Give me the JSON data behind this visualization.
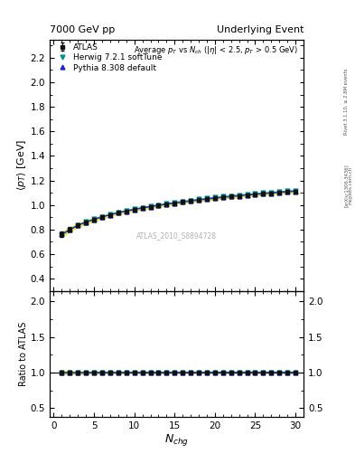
{
  "title_left": "7000 GeV pp",
  "title_right": "Underlying Event",
  "watermark": "ATLAS_2010_S8894728",
  "right_label": "Rivet 3.1.10, ≥ 2.8M events",
  "arxiv_label": "[arXiv:1306.3436]",
  "mcplots_label": "mcplots.cern.ch",
  "ylabel_main": "$\\langle p_T \\rangle$ [GeV]",
  "ylabel_ratio": "Ratio to ATLAS",
  "xlabel": "$N_{chg}$",
  "ylim_main": [
    0.3,
    2.35
  ],
  "ylim_ratio": [
    0.38,
    2.15
  ],
  "yticks_main": [
    0.4,
    0.6,
    0.8,
    1.0,
    1.2,
    1.4,
    1.6,
    1.8,
    2.0,
    2.2
  ],
  "yticks_ratio": [
    0.5,
    1.0,
    1.5,
    2.0
  ],
  "xlim": [
    -0.5,
    31
  ],
  "xticks": [
    0,
    5,
    10,
    15,
    20,
    25,
    30
  ],
  "atlas_x": [
    1,
    2,
    3,
    4,
    5,
    6,
    7,
    8,
    9,
    10,
    11,
    12,
    13,
    14,
    15,
    16,
    17,
    18,
    19,
    20,
    21,
    22,
    23,
    24,
    25,
    26,
    27,
    28,
    29,
    30
  ],
  "atlas_y": [
    0.762,
    0.8,
    0.836,
    0.861,
    0.882,
    0.903,
    0.92,
    0.936,
    0.95,
    0.963,
    0.975,
    0.985,
    0.996,
    1.006,
    1.015,
    1.024,
    1.032,
    1.04,
    1.048,
    1.055,
    1.062,
    1.068,
    1.074,
    1.08,
    1.086,
    1.091,
    1.096,
    1.101,
    1.106,
    1.111
  ],
  "atlas_yerr": [
    0.02,
    0.018,
    0.016,
    0.015,
    0.014,
    0.013,
    0.012,
    0.012,
    0.011,
    0.011,
    0.01,
    0.01,
    0.01,
    0.01,
    0.009,
    0.009,
    0.009,
    0.009,
    0.009,
    0.009,
    0.009,
    0.009,
    0.009,
    0.009,
    0.009,
    0.009,
    0.009,
    0.009,
    0.009,
    0.009
  ],
  "herwig_y": [
    0.762,
    0.8,
    0.836,
    0.862,
    0.884,
    0.905,
    0.923,
    0.939,
    0.954,
    0.967,
    0.979,
    0.99,
    1.001,
    1.011,
    1.02,
    1.029,
    1.038,
    1.046,
    1.054,
    1.061,
    1.068,
    1.074,
    1.081,
    1.087,
    1.092,
    1.098,
    1.103,
    1.108,
    1.113,
    1.118
  ],
  "pythia_y": [
    0.76,
    0.798,
    0.834,
    0.86,
    0.882,
    0.902,
    0.92,
    0.936,
    0.95,
    0.963,
    0.975,
    0.986,
    0.996,
    1.006,
    1.015,
    1.024,
    1.032,
    1.04,
    1.048,
    1.055,
    1.062,
    1.068,
    1.075,
    1.081,
    1.086,
    1.092,
    1.097,
    1.102,
    1.107,
    1.112
  ],
  "atlas_color": "#111111",
  "herwig_color": "#009090",
  "pythia_color": "#2222cc",
  "atlas_band_color": "#dddd00",
  "atlas_band_alpha": 0.55,
  "bg_color": "#ffffff",
  "ratio_herwig": [
    1.0,
    1.0,
    1.0,
    1.001,
    1.002,
    1.002,
    1.003,
    1.003,
    1.004,
    1.004,
    1.004,
    1.005,
    1.005,
    1.005,
    1.005,
    1.005,
    1.006,
    1.006,
    1.006,
    1.006,
    1.006,
    1.006,
    1.007,
    1.007,
    1.006,
    1.007,
    1.007,
    1.007,
    1.006,
    1.006
  ],
  "ratio_pythia": [
    0.997,
    0.998,
    0.998,
    0.999,
    1.0,
    0.999,
    1.0,
    1.0,
    1.0,
    1.0,
    1.0,
    1.001,
    1.0,
    1.0,
    1.0,
    1.0,
    1.0,
    1.0,
    1.0,
    1.0,
    1.0,
    1.0,
    1.001,
    1.001,
    1.0,
    1.001,
    1.001,
    1.001,
    1.001,
    1.001
  ]
}
